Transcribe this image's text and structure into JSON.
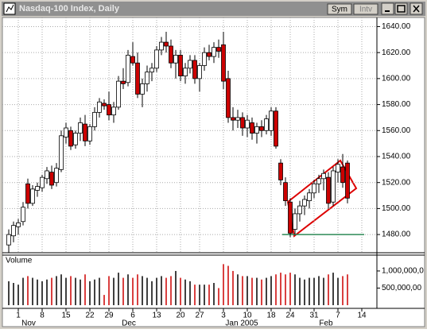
{
  "chart_data": {
    "type": "candlestick",
    "title": "Nasdaq-100 Index, Daily",
    "buttons": [
      "Sym",
      "Intv"
    ],
    "categories": [
      null,
      null,
      "1",
      null,
      null,
      null,
      null,
      "8",
      null,
      null,
      null,
      null,
      "15",
      null,
      null,
      null,
      null,
      "22",
      null,
      null,
      null,
      "29",
      null,
      null,
      null,
      null,
      "6",
      null,
      null,
      null,
      null,
      "13",
      null,
      null,
      null,
      null,
      "20",
      null,
      null,
      null,
      "27",
      null,
      null,
      null,
      null,
      "3",
      null,
      null,
      null,
      null,
      "10",
      null,
      null,
      null,
      null,
      "18",
      null,
      null,
      null,
      "24",
      null,
      null,
      null,
      null,
      "31",
      null,
      null,
      null,
      null,
      "7",
      null,
      null,
      null,
      null,
      "14"
    ],
    "month_labels": [
      "Nov",
      "Dec",
      "Jan 2005",
      "Feb"
    ],
    "open": [
      1472,
      1479,
      1486,
      1490,
      1519,
      1504,
      1514,
      1516,
      1523,
      1528,
      1520,
      1530,
      1555,
      1560,
      1549,
      1558,
      1565,
      1552,
      1563,
      1574,
      1581,
      1580,
      1572,
      1578,
      1598,
      1597,
      1617,
      1612,
      1588,
      1596,
      1605,
      1608,
      1622,
      1628,
      1625,
      1612,
      1618,
      1602,
      1608,
      1614,
      1600,
      1610,
      1620,
      1617,
      1624,
      1626,
      1600,
      1570,
      1568,
      1570,
      1562,
      1566,
      1558,
      1563,
      1560,
      1560,
      1575,
      1535,
      1520,
      1505,
      1484,
      1496,
      1502,
      1506,
      1512,
      1519,
      1523,
      1524,
      1505,
      1528,
      1532,
      1535,
      null,
      null,
      null
    ],
    "high": [
      1484,
      1490,
      1492,
      1505,
      1523,
      1518,
      1520,
      1526,
      1532,
      1533,
      1535,
      1560,
      1566,
      1563,
      1560,
      1570,
      1572,
      1565,
      1578,
      1585,
      1584,
      1590,
      1582,
      1602,
      1608,
      1622,
      1628,
      1620,
      1600,
      1610,
      1612,
      1625,
      1632,
      1636,
      1630,
      1622,
      1622,
      1612,
      1618,
      1618,
      1612,
      1624,
      1626,
      1628,
      1630,
      1636,
      1606,
      1578,
      1576,
      1574,
      1572,
      1570,
      1566,
      1568,
      1572,
      1578,
      1578,
      1538,
      1524,
      1508,
      1500,
      1506,
      1510,
      1515,
      1522,
      1526,
      1530,
      1528,
      1532,
      1538,
      1542,
      1537,
      null,
      null,
      null
    ],
    "low": [
      1466,
      1474,
      1480,
      1487,
      1500,
      1502,
      1509,
      1513,
      1519,
      1515,
      1517,
      1528,
      1550,
      1545,
      1546,
      1552,
      1548,
      1549,
      1560,
      1570,
      1576,
      1568,
      1566,
      1576,
      1592,
      1594,
      1610,
      1585,
      1578,
      1590,
      1598,
      1605,
      1618,
      1620,
      1608,
      1600,
      1598,
      1596,
      1604,
      1596,
      1590,
      1606,
      1614,
      1612,
      1616,
      1592,
      1566,
      1560,
      1562,
      1556,
      1555,
      1553,
      1550,
      1555,
      1557,
      1556,
      1546,
      1518,
      1502,
      1478,
      1480,
      1490,
      1495,
      1500,
      1508,
      1512,
      1514,
      1500,
      1502,
      1520,
      1516,
      1504,
      null,
      null,
      null
    ],
    "close": [
      1480,
      1487,
      1489,
      1501,
      1504,
      1515,
      1517,
      1524,
      1529,
      1518,
      1531,
      1556,
      1562,
      1548,
      1558,
      1566,
      1552,
      1563,
      1574,
      1582,
      1579,
      1572,
      1578,
      1598,
      1596,
      1618,
      1612,
      1588,
      1596,
      1605,
      1608,
      1622,
      1628,
      1625,
      1612,
      1618,
      1602,
      1608,
      1614,
      1600,
      1610,
      1620,
      1617,
      1624,
      1621,
      1598,
      1570,
      1568,
      1570,
      1562,
      1568,
      1558,
      1563,
      1560,
      1569,
      1575,
      1548,
      1522,
      1506,
      1481,
      1496,
      1502,
      1507,
      1512,
      1519,
      1523,
      1527,
      1504,
      1529,
      1534,
      1520,
      1508,
      null,
      null,
      null
    ],
    "ylim": [
      1466,
      1647
    ],
    "yticks": [
      {
        "value": 1480,
        "label": "1480.00"
      },
      {
        "value": 1500,
        "label": "1500.00"
      },
      {
        "value": 1520,
        "label": "1520.00"
      },
      {
        "value": 1540,
        "label": "1540.00"
      },
      {
        "value": 1560,
        "label": "1560.00"
      },
      {
        "value": 1580,
        "label": "1580.00"
      },
      {
        "value": 1600,
        "label": "1600.00"
      },
      {
        "value": 1620,
        "label": "1620.00"
      },
      {
        "value": 1640,
        "label": "1640.00"
      }
    ],
    "grid": true,
    "up_color": "#ffffff",
    "down_color": "#cc0000",
    "support_line": {
      "value": 1480,
      "color": "#2e8b57"
    },
    "volume": {
      "title": "Volume",
      "values": [
        700000000,
        650000000,
        600000000,
        800000000,
        850000000,
        800000000,
        750000000,
        700000000,
        750000000,
        800000000,
        850000000,
        900000000,
        800000000,
        850000000,
        800000000,
        750000000,
        900000000,
        700000000,
        750000000,
        800000000,
        300000000,
        850000000,
        800000000,
        950000000,
        800000000,
        900000000,
        800000000,
        900000000,
        850000000,
        800000000,
        700000000,
        800000000,
        850000000,
        800000000,
        850000000,
        1000000000,
        800000000,
        750000000,
        700000000,
        600000000,
        600000000,
        600000000,
        600000000,
        650000000,
        500000000,
        1200000000,
        1150000000,
        1000000000,
        900000000,
        850000000,
        850000000,
        800000000,
        800000000,
        750000000,
        800000000,
        850000000,
        900000000,
        950000000,
        900000000,
        950000000,
        900000000,
        800000000,
        750000000,
        800000000,
        800000000,
        850000000,
        800000000,
        900000000,
        950000000,
        800000000,
        850000000,
        900000000,
        null,
        null,
        null
      ],
      "ylim": [
        0,
        1440000000
      ],
      "yticks": [
        {
          "value": 500000000,
          "label": "500,000,00"
        },
        {
          "value": 1000000000,
          "label": "1,000,000,0"
        }
      ],
      "up_color": "#000000",
      "down_color": "#cc0000"
    }
  }
}
